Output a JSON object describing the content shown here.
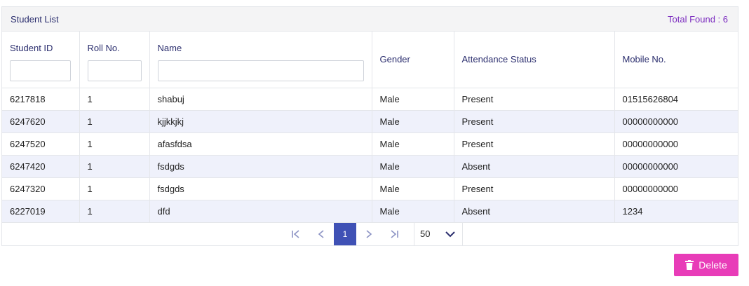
{
  "panel": {
    "title": "Student List",
    "total_found": "Total Found : 6"
  },
  "columns": {
    "student_id": "Student ID",
    "roll_no": "Roll No.",
    "name": "Name",
    "gender": "Gender",
    "attendance_status": "Attendance Status",
    "mobile_no": "Mobile No."
  },
  "filters": {
    "student_id": "",
    "roll_no": "",
    "name": ""
  },
  "rows": [
    {
      "student_id": "6217818",
      "roll_no": "1",
      "name": "shabuj",
      "gender": "Male",
      "attendance_status": "Present",
      "mobile_no": "01515626804"
    },
    {
      "student_id": "6247620",
      "roll_no": "1",
      "name": "kjjkkjkj",
      "gender": "Male",
      "attendance_status": "Present",
      "mobile_no": "00000000000"
    },
    {
      "student_id": "6247520",
      "roll_no": "1",
      "name": "afasfdsa",
      "gender": "Male",
      "attendance_status": "Present",
      "mobile_no": "00000000000"
    },
    {
      "student_id": "6247420",
      "roll_no": "1",
      "name": "fsdgds",
      "gender": "Male",
      "attendance_status": "Absent",
      "mobile_no": "00000000000"
    },
    {
      "student_id": "6247320",
      "roll_no": "1",
      "name": "fsdgds",
      "gender": "Male",
      "attendance_status": "Present",
      "mobile_no": "00000000000"
    },
    {
      "student_id": "6227019",
      "roll_no": "1",
      "name": "dfd",
      "gender": "Male",
      "attendance_status": "Absent",
      "mobile_no": "1234"
    }
  ],
  "pagination": {
    "first_icon": "first-page-icon",
    "prev_icon": "chevron-left-icon",
    "current_page": "1",
    "next_icon": "chevron-right-icon",
    "last_icon": "last-page-icon",
    "page_size": "50"
  },
  "actions": {
    "delete_label": "Delete",
    "delete_icon": "trash-icon",
    "delete_color": "#e83cb8"
  },
  "colors": {
    "header_text": "#2b2e6e",
    "total_found": "#7b2bbf",
    "active_page": "#3f51b5",
    "stripe": "#eff1fb"
  }
}
